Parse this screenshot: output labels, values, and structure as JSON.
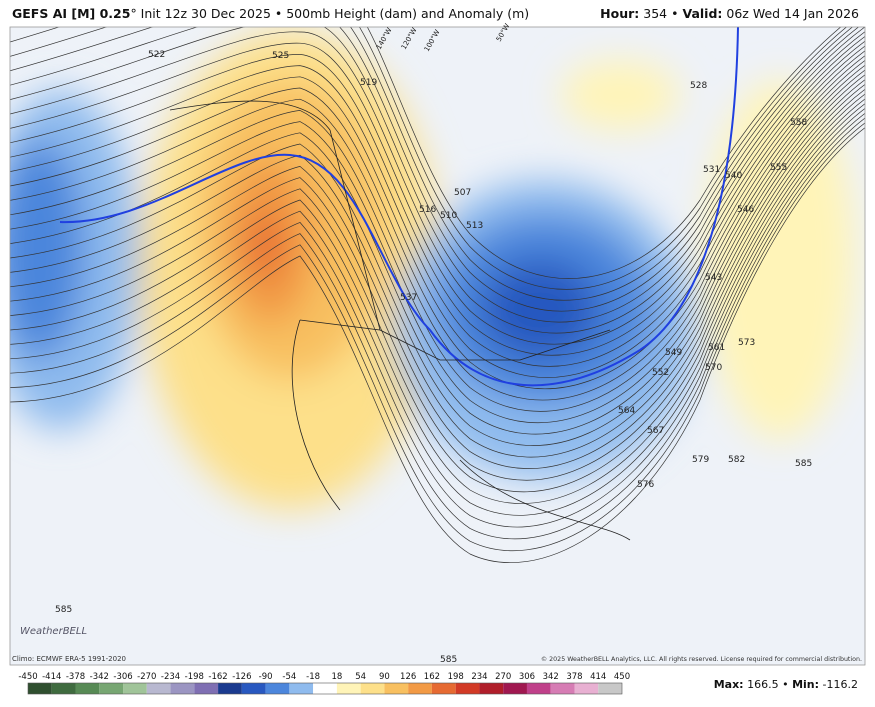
{
  "header": {
    "model": "GEFS AI [M] 0.25",
    "description": "° Init 12z 30 Dec 2025 • 500mb Height (dam) and Anomaly (m)",
    "separator": "•",
    "hour_label": "Hour:",
    "hour_value": "354",
    "valid_label": "Valid:",
    "valid_value": "06z Wed 14 Jan 2026"
  },
  "map": {
    "contour_labels": [
      "522",
      "525",
      "519",
      "516",
      "510",
      "513",
      "507",
      "528",
      "531",
      "540",
      "546",
      "555",
      "558",
      "537",
      "543",
      "549",
      "552",
      "561",
      "570",
      "573",
      "564",
      "567",
      "576",
      "579",
      "582",
      "585",
      "585",
      "585"
    ],
    "meridian_labels": [
      "140°W",
      "120°W",
      "100°W",
      "50°W"
    ],
    "logo": "WeatherBELL"
  },
  "footer": {
    "climo": "Climo: ECMWF ERA-5 1991-2020",
    "copyright": "© 2025 WeatherBELL Analytics, LLC. All rights reserved. License required for commercial distribution."
  },
  "colorbar": {
    "ticks": [
      -450,
      -414,
      -378,
      -342,
      -306,
      -270,
      -234,
      -198,
      -162,
      -126,
      -90,
      -54,
      -18,
      18,
      54,
      90,
      126,
      162,
      198,
      234,
      270,
      306,
      342,
      378,
      414,
      450
    ],
    "colors": [
      "#2f4f2f",
      "#3f6b3f",
      "#578a55",
      "#77a672",
      "#a0c499",
      "#b8b8d0",
      "#9b95c2",
      "#7f6fb3",
      "#1a3a8f",
      "#2858c0",
      "#4c86dc",
      "#8fbbee",
      "#ffffff",
      "#fff4b8",
      "#fde08a",
      "#f8c060",
      "#f29a45",
      "#e66a32",
      "#d23a26",
      "#b01e2a",
      "#a01850",
      "#c0408a",
      "#d67cb4",
      "#e8b0d2",
      "#c8c8c8"
    ]
  },
  "stats": {
    "max_label": "Max:",
    "max_value": "166.5",
    "separator": "•",
    "min_label": "Min:",
    "min_value": "-116.2"
  }
}
